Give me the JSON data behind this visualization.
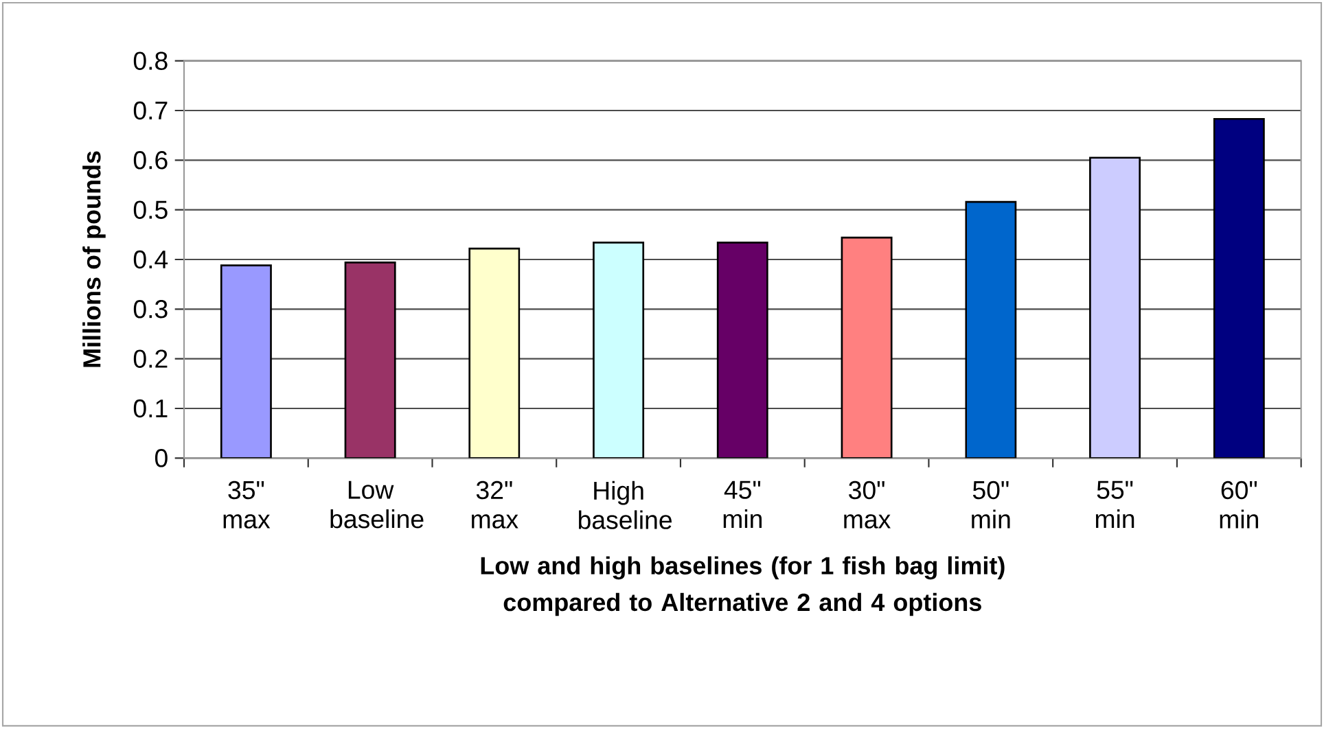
{
  "chart_data": {
    "type": "bar",
    "xlabel": "Low and high baselines (for 1 fish bag limit) compared to Alternative 2 and 4 options",
    "ylabel": "Millions of pounds",
    "categories": [
      "35\" max",
      "Low baseline",
      "32\" max",
      "High baseline",
      "45\" min",
      "30\" max",
      "50\" min",
      "55\" min",
      "60\" min"
    ],
    "values": [
      0.388,
      0.394,
      0.422,
      0.434,
      0.434,
      0.444,
      0.516,
      0.605,
      0.683
    ],
    "colors": [
      "#9999ff",
      "#993366",
      "#ffffcc",
      "#ccffff",
      "#660066",
      "#ff8080",
      "#0066cc",
      "#ccccff",
      "#000080"
    ],
    "ylim": [
      0,
      0.8
    ],
    "yticks": [
      0,
      0.1,
      0.2,
      0.3,
      0.4,
      0.5,
      0.6,
      0.7,
      0.8
    ],
    "grid": "y"
  }
}
